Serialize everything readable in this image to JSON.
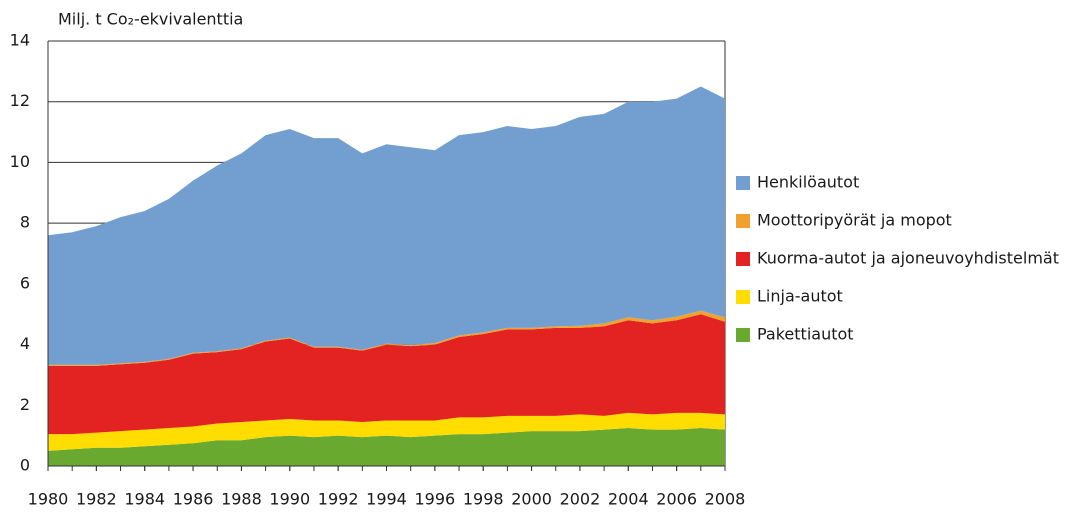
{
  "chart_data": {
    "type": "stacked_area",
    "y_axis_label": "Milj. t Co₂-ekvivalenttia",
    "x": [
      1980,
      1981,
      1982,
      1983,
      1984,
      1985,
      1986,
      1987,
      1988,
      1989,
      1990,
      1991,
      1992,
      1993,
      1994,
      1995,
      1996,
      1997,
      1998,
      1999,
      2000,
      2001,
      2002,
      2003,
      2004,
      2005,
      2006,
      2007,
      2008
    ],
    "xlim": [
      1980,
      2008
    ],
    "xticks": [
      1980,
      1982,
      1984,
      1986,
      1988,
      1990,
      1992,
      1994,
      1996,
      1998,
      2000,
      2002,
      2004,
      2006,
      2008
    ],
    "ylim": [
      0,
      14
    ],
    "yticks": [
      0,
      2,
      4,
      6,
      8,
      10,
      12,
      14
    ],
    "grid": true,
    "legend": "right",
    "series": [
      {
        "name": "Pakettiautot",
        "color": "#6aa92f",
        "values": [
          0.5,
          0.55,
          0.6,
          0.6,
          0.65,
          0.7,
          0.75,
          0.85,
          0.85,
          0.95,
          1.0,
          0.95,
          1.0,
          0.95,
          1.0,
          0.95,
          1.0,
          1.05,
          1.05,
          1.1,
          1.15,
          1.15,
          1.15,
          1.2,
          1.25,
          1.2,
          1.2,
          1.25,
          1.2
        ]
      },
      {
        "name": "Linja-autot",
        "color": "#ffdd00",
        "values": [
          0.55,
          0.5,
          0.5,
          0.55,
          0.55,
          0.55,
          0.55,
          0.55,
          0.6,
          0.55,
          0.55,
          0.55,
          0.5,
          0.5,
          0.5,
          0.55,
          0.5,
          0.55,
          0.55,
          0.55,
          0.5,
          0.5,
          0.55,
          0.45,
          0.5,
          0.5,
          0.55,
          0.5,
          0.5
        ]
      },
      {
        "name": "Kuorma-autot ja ajoneuvoyhdistelmät",
        "color": "#e32322",
        "values": [
          2.25,
          2.25,
          2.2,
          2.2,
          2.2,
          2.25,
          2.4,
          2.35,
          2.4,
          2.6,
          2.65,
          2.4,
          2.4,
          2.35,
          2.5,
          2.45,
          2.5,
          2.65,
          2.75,
          2.85,
          2.85,
          2.9,
          2.85,
          2.95,
          3.05,
          3.0,
          3.05,
          3.25,
          3.05
        ]
      },
      {
        "name": "Moottoripyörät ja mopot",
        "color": "#f0a12e",
        "values": [
          0.03,
          0.03,
          0.03,
          0.03,
          0.03,
          0.03,
          0.03,
          0.03,
          0.03,
          0.03,
          0.03,
          0.03,
          0.03,
          0.03,
          0.03,
          0.03,
          0.05,
          0.05,
          0.05,
          0.05,
          0.05,
          0.05,
          0.07,
          0.1,
          0.1,
          0.1,
          0.12,
          0.12,
          0.15
        ]
      },
      {
        "name": "Henkilöautot",
        "color": "#729fcf",
        "values": [
          4.27,
          4.37,
          4.57,
          4.82,
          4.97,
          5.27,
          5.67,
          6.12,
          6.42,
          6.77,
          6.87,
          6.87,
          6.87,
          6.47,
          6.57,
          6.52,
          6.35,
          6.6,
          6.6,
          6.65,
          6.55,
          6.6,
          6.88,
          6.9,
          7.1,
          7.2,
          7.18,
          7.38,
          7.2
        ]
      }
    ]
  }
}
